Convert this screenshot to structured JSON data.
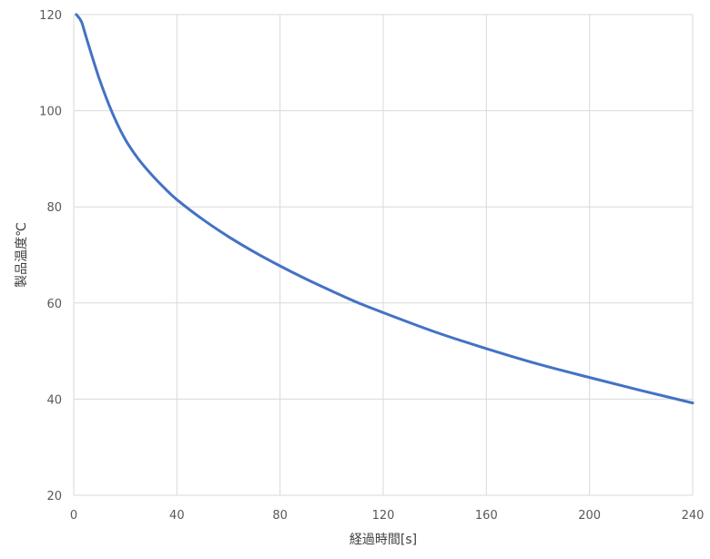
{
  "chart_data": {
    "type": "line",
    "title": "",
    "xlabel": "経過時間[s]",
    "ylabel": "製品温度℃",
    "xlim": [
      0,
      240
    ],
    "ylim": [
      20,
      120
    ],
    "x_ticks": [
      "0",
      "40",
      "80",
      "120",
      "160",
      "200",
      "240"
    ],
    "y_ticks": [
      "20",
      "40",
      "60",
      "80",
      "100",
      "120"
    ],
    "grid": true,
    "legend": "none",
    "series": [
      {
        "color": "#4472C4",
        "x": [
          1,
          3,
          5,
          10,
          15,
          20,
          25,
          30,
          35,
          40,
          50,
          60,
          70,
          80,
          90,
          100,
          110,
          120,
          140,
          160,
          180,
          200,
          220,
          240
        ],
        "y": [
          120,
          118.5,
          115,
          106.5,
          99.5,
          94,
          90,
          86.8,
          84,
          81.5,
          77.4,
          73.8,
          70.6,
          67.7,
          65,
          62.5,
          60.1,
          58,
          54,
          50.5,
          47.3,
          44.5,
          41.8,
          39.2
        ]
      }
    ]
  }
}
